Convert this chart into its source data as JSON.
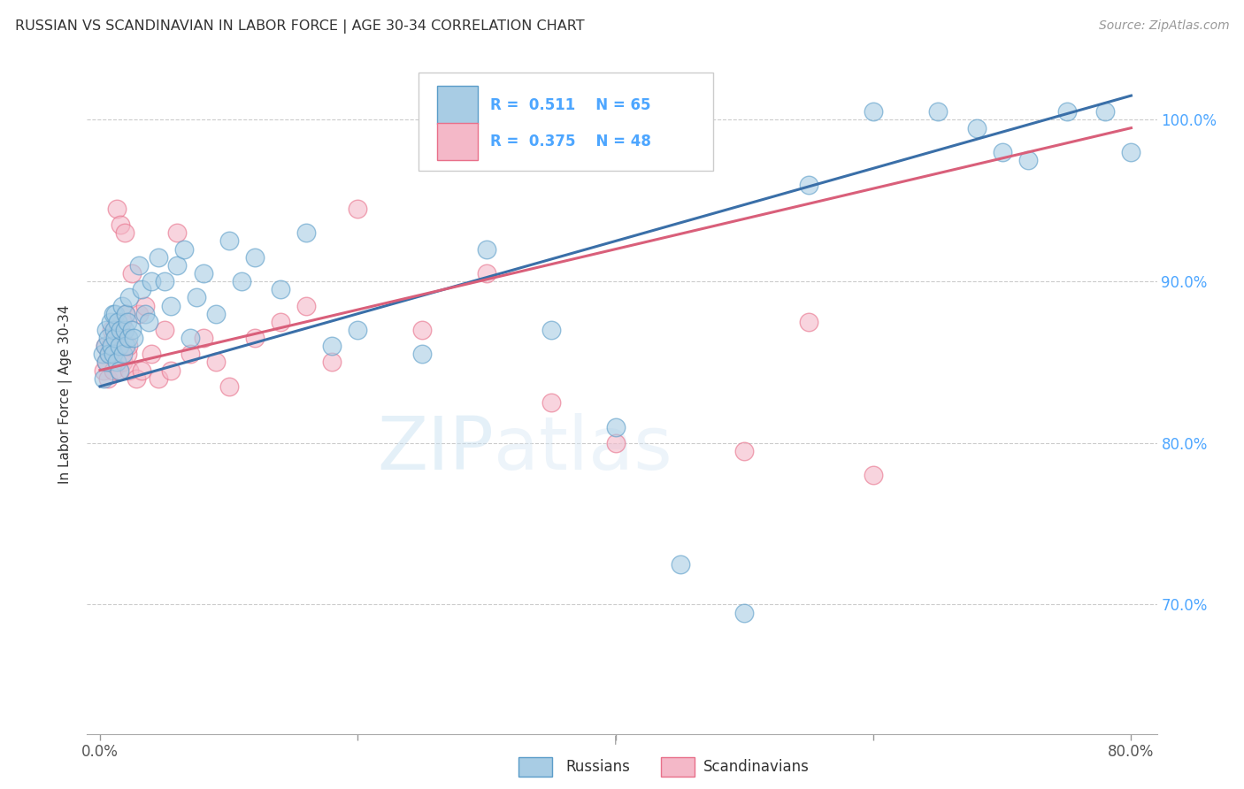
{
  "title": "RUSSIAN VS SCANDINAVIAN IN LABOR FORCE | AGE 30-34 CORRELATION CHART",
  "source": "Source: ZipAtlas.com",
  "ylabel": "In Labor Force | Age 30-34",
  "x_tick_labels": [
    "0.0%",
    "",
    "",
    "",
    "80.0%"
  ],
  "x_tick_vals": [
    0.0,
    20.0,
    40.0,
    60.0,
    80.0
  ],
  "y_tick_labels": [
    "70.0%",
    "80.0%",
    "90.0%",
    "100.0%"
  ],
  "y_tick_vals": [
    70.0,
    80.0,
    90.0,
    100.0
  ],
  "xlim": [
    -1.0,
    82.0
  ],
  "ylim": [
    62.0,
    104.0
  ],
  "blue_color": "#a8cce4",
  "pink_color": "#f4b8c8",
  "blue_edge_color": "#5b9dc9",
  "pink_edge_color": "#e8708a",
  "blue_line_color": "#3a6fa8",
  "pink_line_color": "#d95f7a",
  "watermark_color": "#ddeef8",
  "background_color": "#ffffff",
  "russians_x": [
    0.2,
    0.3,
    0.4,
    0.5,
    0.5,
    0.6,
    0.7,
    0.8,
    0.9,
    1.0,
    1.0,
    1.1,
    1.2,
    1.2,
    1.3,
    1.4,
    1.5,
    1.5,
    1.6,
    1.7,
    1.8,
    1.9,
    2.0,
    2.0,
    2.1,
    2.2,
    2.3,
    2.5,
    2.6,
    3.0,
    3.2,
    3.5,
    3.8,
    4.0,
    4.5,
    5.0,
    5.5,
    6.0,
    6.5,
    7.0,
    7.5,
    8.0,
    9.0,
    10.0,
    11.0,
    12.0,
    14.0,
    16.0,
    18.0,
    20.0,
    25.0,
    30.0,
    35.0,
    40.0,
    45.0,
    50.0,
    55.0,
    60.0,
    65.0,
    68.0,
    70.0,
    72.0,
    75.0,
    78.0,
    80.0
  ],
  "russians_y": [
    85.5,
    84.0,
    86.0,
    85.0,
    87.0,
    86.5,
    85.5,
    87.5,
    86.0,
    88.0,
    85.5,
    87.0,
    88.0,
    86.5,
    85.0,
    87.5,
    84.5,
    86.0,
    87.0,
    88.5,
    85.5,
    87.0,
    88.0,
    86.0,
    87.5,
    86.5,
    89.0,
    87.0,
    86.5,
    91.0,
    89.5,
    88.0,
    87.5,
    90.0,
    91.5,
    90.0,
    88.5,
    91.0,
    92.0,
    86.5,
    89.0,
    90.5,
    88.0,
    92.5,
    90.0,
    91.5,
    89.5,
    93.0,
    86.0,
    87.0,
    85.5,
    92.0,
    87.0,
    81.0,
    72.5,
    69.5,
    96.0,
    100.5,
    100.5,
    99.5,
    98.0,
    97.5,
    100.5,
    100.5,
    98.0
  ],
  "scandinavians_x": [
    0.3,
    0.4,
    0.5,
    0.6,
    0.7,
    0.8,
    0.9,
    1.0,
    1.0,
    1.1,
    1.2,
    1.3,
    1.4,
    1.5,
    1.6,
    1.7,
    1.8,
    1.9,
    2.0,
    2.1,
    2.2,
    2.3,
    2.5,
    2.8,
    3.0,
    3.2,
    3.5,
    4.0,
    4.5,
    5.0,
    5.5,
    6.0,
    7.0,
    8.0,
    9.0,
    10.0,
    12.0,
    14.0,
    16.0,
    18.0,
    20.0,
    25.0,
    30.0,
    35.0,
    40.0,
    50.0,
    55.0,
    60.0
  ],
  "scandinavians_y": [
    84.5,
    86.0,
    85.0,
    84.0,
    85.5,
    86.0,
    87.0,
    86.5,
    84.5,
    87.0,
    86.5,
    94.5,
    87.0,
    84.5,
    93.5,
    87.5,
    85.0,
    93.0,
    88.0,
    85.5,
    86.0,
    84.5,
    90.5,
    84.0,
    88.0,
    84.5,
    88.5,
    85.5,
    84.0,
    87.0,
    84.5,
    93.0,
    85.5,
    86.5,
    85.0,
    83.5,
    86.5,
    87.5,
    88.5,
    85.0,
    94.5,
    87.0,
    90.5,
    82.5,
    80.0,
    79.5,
    87.5,
    78.0
  ],
  "trend_blue_x0": 0.0,
  "trend_blue_y0": 83.5,
  "trend_blue_x1": 80.0,
  "trend_blue_y1": 101.5,
  "trend_pink_x0": 0.0,
  "trend_pink_y0": 84.5,
  "trend_pink_x1": 80.0,
  "trend_pink_y1": 99.5
}
